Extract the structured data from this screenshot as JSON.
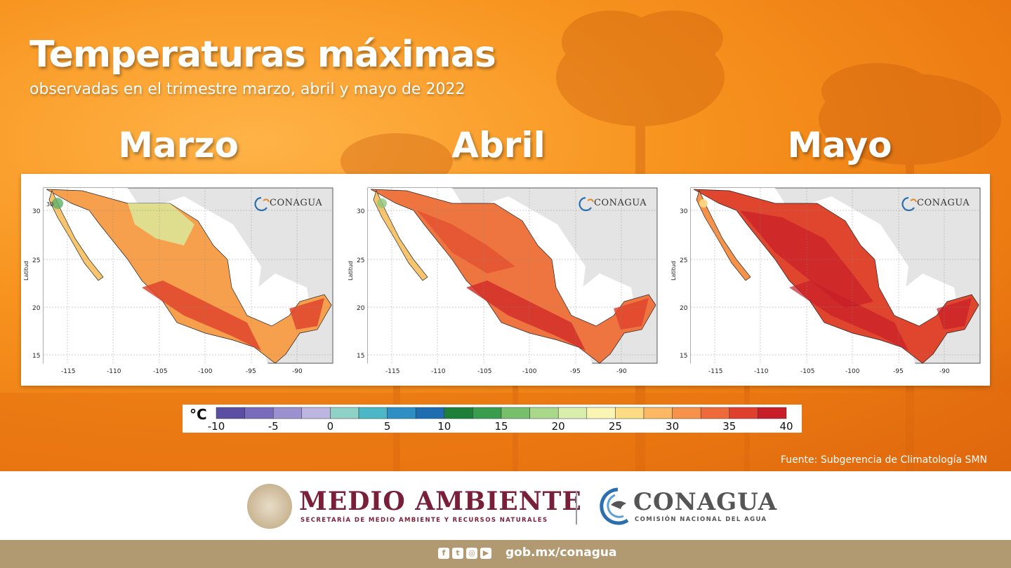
{
  "header": {
    "title": "Temperaturas máximas",
    "subtitle": "observadas en el trimestre marzo, abril y mayo de 2022"
  },
  "maps": [
    {
      "month": "Marzo",
      "logo": "CONAGUA",
      "lat_label": "Latitud"
    },
    {
      "month": "Abril",
      "logo": "CONAGUA",
      "lat_label": "Latitud"
    },
    {
      "month": "Mayo",
      "logo": "CONAGUA",
      "lat_label": "Latitud"
    }
  ],
  "axes": {
    "lon_ticks": [
      "-115",
      "-110",
      "-105",
      "-100",
      "-95",
      "-90"
    ],
    "lat_ticks": [
      "30",
      "25",
      "20",
      "15"
    ]
  },
  "color_scale": {
    "unit": "°C",
    "labels": [
      "-10",
      "-5",
      "0",
      "5",
      "10",
      "15",
      "20",
      "25",
      "30",
      "35",
      "40"
    ],
    "colors": [
      "#5b4ea3",
      "#7a6cbc",
      "#9b91cf",
      "#bcb6e0",
      "#8fd2c5",
      "#4cb7c7",
      "#2e8fc4",
      "#1f6db1",
      "#1d7f3a",
      "#3a9d4d",
      "#77bf6b",
      "#a9d88a",
      "#d8eeaa",
      "#fbf5b5",
      "#fddc84",
      "#fcb863",
      "#f7924b",
      "#ef6a3a",
      "#e03f2d",
      "#c81e2a"
    ]
  },
  "source": "Fuente: Subgerencia de Climatología SMN",
  "footer": {
    "ministry_title": "MEDIO AMBIENTE",
    "ministry_subtitle": "SECRETARÍA DE MEDIO AMBIENTE Y RECURSOS NATURALES",
    "agency_title": "CONAGUA",
    "agency_subtitle": "COMISIÓN NACIONAL DEL AGUA",
    "url": "gob.mx/conagua",
    "social_icons": [
      "facebook-icon",
      "twitter-icon",
      "instagram-icon",
      "youtube-icon"
    ]
  }
}
